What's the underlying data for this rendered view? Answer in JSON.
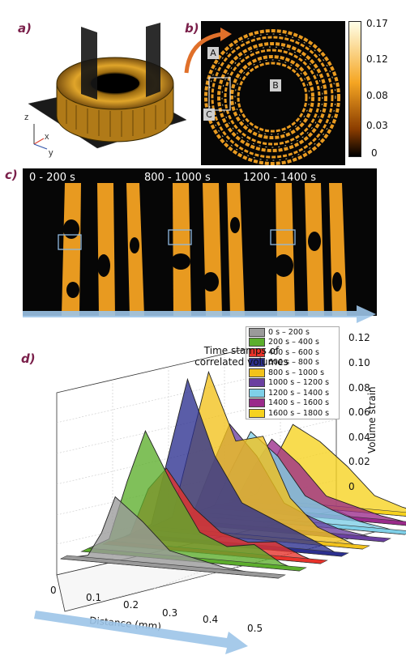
{
  "panels": {
    "a": {
      "label": "a)",
      "axes": {
        "z": "z",
        "x": "x",
        "y": "y"
      }
    },
    "b": {
      "label": "b)",
      "colorbar_ticks": [
        "0.17",
        "0.12",
        "0.08",
        "0.03",
        "0"
      ],
      "colorbar_colors": {
        "top": "#ffffe8",
        "mid": "#f5a623",
        "low": "#8a3c00",
        "bottom": "#000000"
      },
      "regions": [
        "A",
        "B",
        "C"
      ]
    },
    "c": {
      "label": "c)",
      "time_labels": [
        "0 - 200 s",
        "800 - 1000 s",
        "1200 - 1400 s"
      ]
    },
    "d": {
      "label": "d)"
    }
  },
  "chart_data": {
    "type": "area",
    "annotation": "Time stamps of correlated volumes",
    "xlabel": "Distance (mm)",
    "zlabel": "Volume strain",
    "x_ticks": [
      "0",
      "0.1",
      "0.2",
      "0.3",
      "0.4",
      "0.5"
    ],
    "z_ticks": [
      "0.12",
      "0.10",
      "0.08",
      "0.06",
      "0.04",
      "0.02",
      "0"
    ],
    "xlim": [
      0,
      0.5
    ],
    "zlim": [
      0,
      0.12
    ],
    "legend_placement": "top-right",
    "grid": true,
    "series": [
      {
        "name": "0 s – 200 s",
        "color": "#9a9a9a",
        "x": [
          0.0,
          0.06,
          0.09,
          0.12,
          0.18,
          0.24,
          0.3,
          0.36,
          0.42,
          0.48
        ],
        "values": [
          0.0,
          0.004,
          0.02,
          0.045,
          0.03,
          0.012,
          0.008,
          0.004,
          0.002,
          0.0
        ]
      },
      {
        "name": "200 s – 400 s",
        "color": "#5cae2c",
        "x": [
          0.0,
          0.06,
          0.1,
          0.14,
          0.2,
          0.26,
          0.32,
          0.38,
          0.44,
          0.48
        ],
        "values": [
          0.0,
          0.01,
          0.05,
          0.085,
          0.05,
          0.02,
          0.012,
          0.015,
          0.004,
          0.0
        ]
      },
      {
        "name": "400 s – 600 s",
        "color": "#e8322a",
        "x": [
          0.0,
          0.06,
          0.1,
          0.14,
          0.2,
          0.26,
          0.32,
          0.38,
          0.44,
          0.48
        ],
        "values": [
          0.0,
          0.008,
          0.04,
          0.055,
          0.03,
          0.015,
          0.01,
          0.012,
          0.004,
          0.0
        ]
      },
      {
        "name": "600 s – 800 s",
        "color": "#2b2f8f",
        "x": [
          0.0,
          0.06,
          0.1,
          0.14,
          0.2,
          0.26,
          0.32,
          0.38,
          0.44,
          0.48
        ],
        "values": [
          0.0,
          0.01,
          0.06,
          0.11,
          0.06,
          0.03,
          0.022,
          0.014,
          0.006,
          0.0
        ]
      },
      {
        "name": "800 s – 1000 s",
        "color": "#f2c21b",
        "x": [
          0.0,
          0.06,
          0.1,
          0.14,
          0.2,
          0.26,
          0.32,
          0.38,
          0.44,
          0.48
        ],
        "values": [
          0.0,
          0.01,
          0.06,
          0.11,
          0.065,
          0.07,
          0.03,
          0.012,
          0.005,
          0.0
        ]
      },
      {
        "name": "1000 s – 1200 s",
        "color": "#6a3fa0",
        "x": [
          0.0,
          0.06,
          0.1,
          0.14,
          0.2,
          0.26,
          0.32,
          0.38,
          0.44,
          0.48
        ],
        "values": [
          0.0,
          0.008,
          0.04,
          0.07,
          0.05,
          0.02,
          0.012,
          0.006,
          0.003,
          0.0
        ]
      },
      {
        "name": "1200 s – 1400 s",
        "color": "#7fd0e8",
        "x": [
          0.0,
          0.06,
          0.1,
          0.14,
          0.2,
          0.26,
          0.32,
          0.38,
          0.44,
          0.48
        ],
        "values": [
          0.0,
          0.008,
          0.035,
          0.06,
          0.045,
          0.02,
          0.012,
          0.006,
          0.003,
          0.0
        ]
      },
      {
        "name": "1400 s – 1600 s",
        "color": "#9a2a8a",
        "x": [
          0.0,
          0.06,
          0.1,
          0.14,
          0.2,
          0.26,
          0.32,
          0.38,
          0.44,
          0.48
        ],
        "values": [
          0.0,
          0.006,
          0.03,
          0.05,
          0.035,
          0.015,
          0.01,
          0.005,
          0.002,
          0.0
        ]
      },
      {
        "name": "1600 s – 1800 s",
        "color": "#f6d21e",
        "x": [
          0.0,
          0.06,
          0.1,
          0.14,
          0.2,
          0.26,
          0.32,
          0.38,
          0.44,
          0.48
        ],
        "values": [
          0.0,
          0.006,
          0.03,
          0.055,
          0.045,
          0.03,
          0.012,
          0.006,
          0.002,
          0.0
        ]
      }
    ]
  }
}
